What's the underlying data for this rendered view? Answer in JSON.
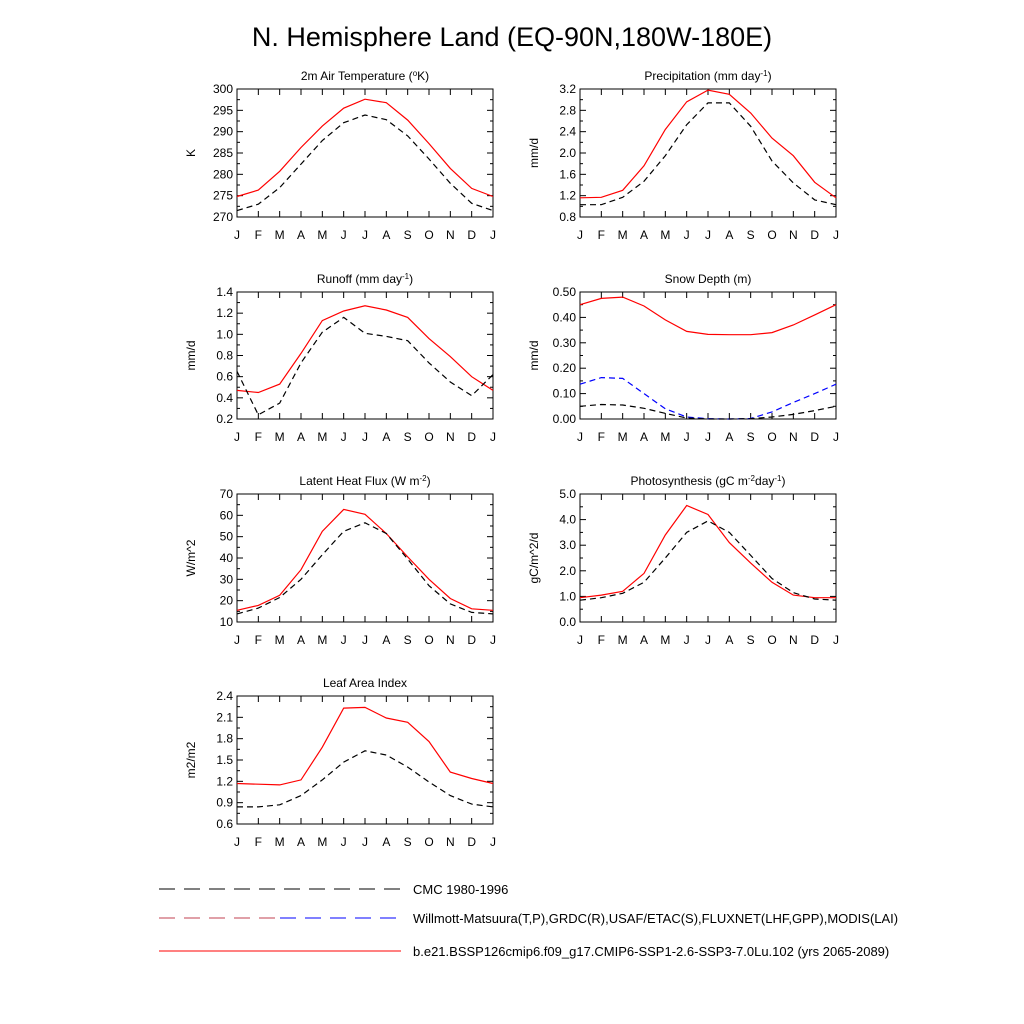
{
  "figure": {
    "title": "N. Hemisphere Land (EQ-90N,180W-180E)"
  },
  "colors": {
    "model": "#ff0000",
    "obs": "#000000",
    "obs_alt": "#0000ff"
  },
  "chart_data": [
    {
      "type": "line",
      "title": "2m Air Temperature (°K)",
      "title_main": "2m Air Temperature (",
      "title_sup": "o",
      "title_tail": "K)",
      "ylabel": "K",
      "ylim": [
        270,
        300
      ],
      "yticks": [
        "270",
        "275",
        "280",
        "285",
        "290",
        "295",
        "300"
      ],
      "x": [
        "J",
        "F",
        "M",
        "A",
        "M",
        "J",
        "J",
        "A",
        "S",
        "O",
        "N",
        "D",
        "J"
      ],
      "series": [
        {
          "style": "model",
          "values": [
            274.8,
            276.3,
            280.7,
            286.3,
            291.3,
            295.5,
            297.6,
            296.8,
            292.7,
            287.2,
            281.4,
            276.7,
            274.8
          ]
        },
        {
          "style": "obs",
          "values": [
            271.5,
            273.0,
            276.9,
            282.4,
            287.9,
            292.1,
            293.9,
            292.8,
            289.0,
            283.6,
            277.9,
            273.2,
            271.5
          ]
        }
      ]
    },
    {
      "type": "line",
      "title": "Precipitation (mm day-1)",
      "title_main": "Precipitation (mm day",
      "title_sup": "-1",
      "title_tail": ")",
      "ylabel": "mm/d",
      "ylim": [
        0.8,
        3.2
      ],
      "yticks": [
        "0.8",
        "1.2",
        "1.6",
        "2.0",
        "2.4",
        "2.8",
        "3.2"
      ],
      "x": [
        "J",
        "F",
        "M",
        "A",
        "M",
        "J",
        "J",
        "A",
        "S",
        "O",
        "N",
        "D",
        "J"
      ],
      "series": [
        {
          "style": "model",
          "values": [
            1.16,
            1.17,
            1.3,
            1.76,
            2.44,
            2.96,
            3.18,
            3.1,
            2.75,
            2.28,
            1.95,
            1.45,
            1.16
          ]
        },
        {
          "style": "obs",
          "values": [
            1.03,
            1.03,
            1.17,
            1.47,
            1.95,
            2.53,
            2.94,
            2.94,
            2.5,
            1.85,
            1.44,
            1.12,
            1.03
          ]
        }
      ]
    },
    {
      "type": "line",
      "title": "Runoff (mm day-1)",
      "title_main": "Runoff (mm day",
      "title_sup": "-1",
      "title_tail": ")",
      "ylabel": "mm/d",
      "ylim": [
        0.2,
        1.4
      ],
      "yticks": [
        "0.2",
        "0.4",
        "0.6",
        "0.8",
        "1.0",
        "1.2",
        "1.4"
      ],
      "x": [
        "J",
        "F",
        "M",
        "A",
        "M",
        "J",
        "J",
        "A",
        "S",
        "O",
        "N",
        "D",
        "J"
      ],
      "series": [
        {
          "style": "model",
          "values": [
            0.47,
            0.45,
            0.53,
            0.82,
            1.13,
            1.22,
            1.27,
            1.23,
            1.16,
            0.96,
            0.79,
            0.6,
            0.47
          ]
        },
        {
          "style": "obs",
          "values": [
            0.65,
            0.24,
            0.35,
            0.73,
            1.02,
            1.16,
            1.01,
            0.98,
            0.94,
            0.73,
            0.55,
            0.42,
            0.62
          ]
        }
      ]
    },
    {
      "type": "line",
      "title": "Snow Depth (m)",
      "title_main": "Snow Depth (m)",
      "title_sup": "",
      "title_tail": "",
      "ylabel": "mm/d",
      "ylim": [
        0.0,
        0.5
      ],
      "yticks": [
        "0.00",
        "0.10",
        "0.20",
        "0.30",
        "0.40",
        "0.50"
      ],
      "x": [
        "J",
        "F",
        "M",
        "A",
        "M",
        "J",
        "J",
        "A",
        "S",
        "O",
        "N",
        "D",
        "J"
      ],
      "series": [
        {
          "style": "model",
          "values": [
            0.45,
            0.475,
            0.48,
            0.445,
            0.39,
            0.345,
            0.333,
            0.332,
            0.332,
            0.34,
            0.37,
            0.41,
            0.45
          ]
        },
        {
          "style": "obs_alt",
          "values": [
            0.137,
            0.163,
            0.16,
            0.1,
            0.04,
            0.008,
            0.001,
            0.0,
            0.002,
            0.028,
            0.065,
            0.1,
            0.137
          ]
        },
        {
          "style": "obs",
          "values": [
            0.05,
            0.057,
            0.055,
            0.042,
            0.022,
            0.004,
            0.0,
            0.0,
            0.001,
            0.008,
            0.018,
            0.033,
            0.05
          ]
        }
      ]
    },
    {
      "type": "line",
      "title": "Latent Heat Flux (W m-2)",
      "title_main": "Latent Heat Flux (W m",
      "title_sup": "-2",
      "title_tail": ")",
      "ylabel": "W/m^2",
      "ylim": [
        10,
        70
      ],
      "yticks": [
        "10",
        "20",
        "30",
        "40",
        "50",
        "60",
        "70"
      ],
      "x": [
        "J",
        "F",
        "M",
        "A",
        "M",
        "J",
        "J",
        "A",
        "S",
        "O",
        "N",
        "D",
        "J"
      ],
      "series": [
        {
          "style": "model",
          "values": [
            15.5,
            17.8,
            22.5,
            34.5,
            52.5,
            62.8,
            60.5,
            51.5,
            40.5,
            30.0,
            21.0,
            16.2,
            15.5
          ]
        },
        {
          "style": "obs",
          "values": [
            13.8,
            16.5,
            21.5,
            30.0,
            41.5,
            52.5,
            56.5,
            51.5,
            39.5,
            27.0,
            18.5,
            14.5,
            13.8
          ]
        }
      ]
    },
    {
      "type": "line",
      "title": "Photosynthesis (gC m-2day-1)",
      "title_main": "Photosynthesis (gC m",
      "title_sup": "-2",
      "title_tail": "day",
      "title_sup2": "-1",
      "title_tail2": ")",
      "ylabel": "gC/m^2/d",
      "ylim": [
        0.0,
        5.0
      ],
      "yticks": [
        "0.0",
        "1.0",
        "2.0",
        "3.0",
        "4.0",
        "5.0"
      ],
      "x": [
        "J",
        "F",
        "M",
        "A",
        "M",
        "J",
        "J",
        "A",
        "S",
        "O",
        "N",
        "D",
        "J"
      ],
      "series": [
        {
          "style": "model",
          "values": [
            0.95,
            1.05,
            1.2,
            1.9,
            3.4,
            4.55,
            4.2,
            3.1,
            2.3,
            1.55,
            1.05,
            0.95,
            0.95
          ]
        },
        {
          "style": "obs",
          "values": [
            0.85,
            0.95,
            1.12,
            1.55,
            2.5,
            3.5,
            3.95,
            3.5,
            2.6,
            1.7,
            1.15,
            0.9,
            0.85
          ]
        }
      ]
    },
    {
      "type": "line",
      "title": "Leaf Area Index",
      "title_main": "Leaf Area Index",
      "title_sup": "",
      "title_tail": "",
      "ylabel": "m2/m2",
      "ylim": [
        0.6,
        2.4
      ],
      "yticks": [
        "0.6",
        "0.9",
        "1.2",
        "1.5",
        "1.8",
        "2.1",
        "2.4"
      ],
      "x": [
        "J",
        "F",
        "M",
        "A",
        "M",
        "J",
        "J",
        "A",
        "S",
        "O",
        "N",
        "D",
        "J"
      ],
      "series": [
        {
          "style": "model",
          "values": [
            1.17,
            1.16,
            1.15,
            1.22,
            1.68,
            2.23,
            2.24,
            2.09,
            2.03,
            1.76,
            1.33,
            1.24,
            1.17
          ]
        },
        {
          "style": "obs",
          "values": [
            0.84,
            0.84,
            0.87,
            1.0,
            1.22,
            1.47,
            1.63,
            1.57,
            1.4,
            1.19,
            1.0,
            0.88,
            0.84
          ]
        }
      ]
    }
  ],
  "legend": [
    {
      "text": "CMC 1980-1996",
      "style": "obs",
      "dash": "obs"
    },
    {
      "text": "Willmott-Matsuura(T,P),GRDC(R),USAF/ETAC(S),FLUXNET(LHF,GPP),MODIS(LAI)",
      "style": "obs",
      "dash": "mixed"
    },
    {
      "text": "b.e21.BSSP126cmip6.f09_g17.CMIP6-SSP1-2.6-SSP3-7.0Lu.102 (yrs 2065-2089)",
      "style": "model",
      "dash": "solid"
    }
  ]
}
